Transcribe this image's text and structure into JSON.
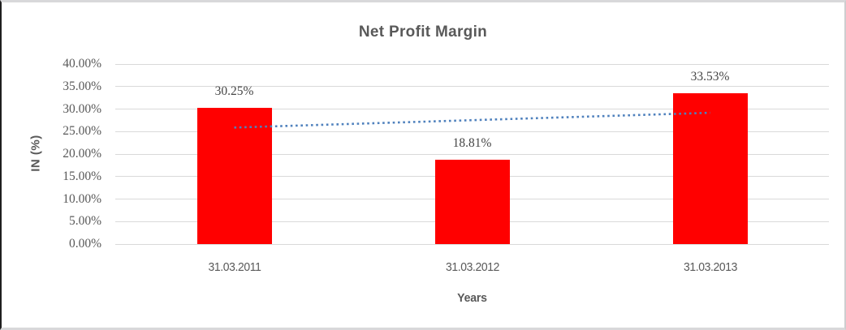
{
  "chart_data": {
    "type": "bar",
    "title": "Net Profit Margin",
    "xlabel": "Years",
    "ylabel": "IN (%)",
    "categories": [
      "31.03.2011",
      "31.03.2012",
      "31.03.2013"
    ],
    "values": [
      30.25,
      18.81,
      33.53
    ],
    "value_labels": [
      "30.25%",
      "18.81%",
      "33.53%"
    ],
    "ylim": [
      0,
      40
    ],
    "ytick_step": 5,
    "ytick_labels": [
      "0.00%",
      "5.00%",
      "10.00%",
      "15.00%",
      "20.00%",
      "25.00%",
      "30.00%",
      "35.00%",
      "40.00%"
    ],
    "grid": true,
    "legend_position": "none",
    "bar_color": "#ff0000",
    "trendline": {
      "type": "linear",
      "style": "dotted",
      "color": "#4f81bd",
      "start_value": 25.89,
      "end_value": 29.17
    }
  },
  "colors": {
    "title_text": "#595959",
    "axis_text": "#595959",
    "value_label_text": "#454545",
    "gridline": "#d9d9d9"
  }
}
